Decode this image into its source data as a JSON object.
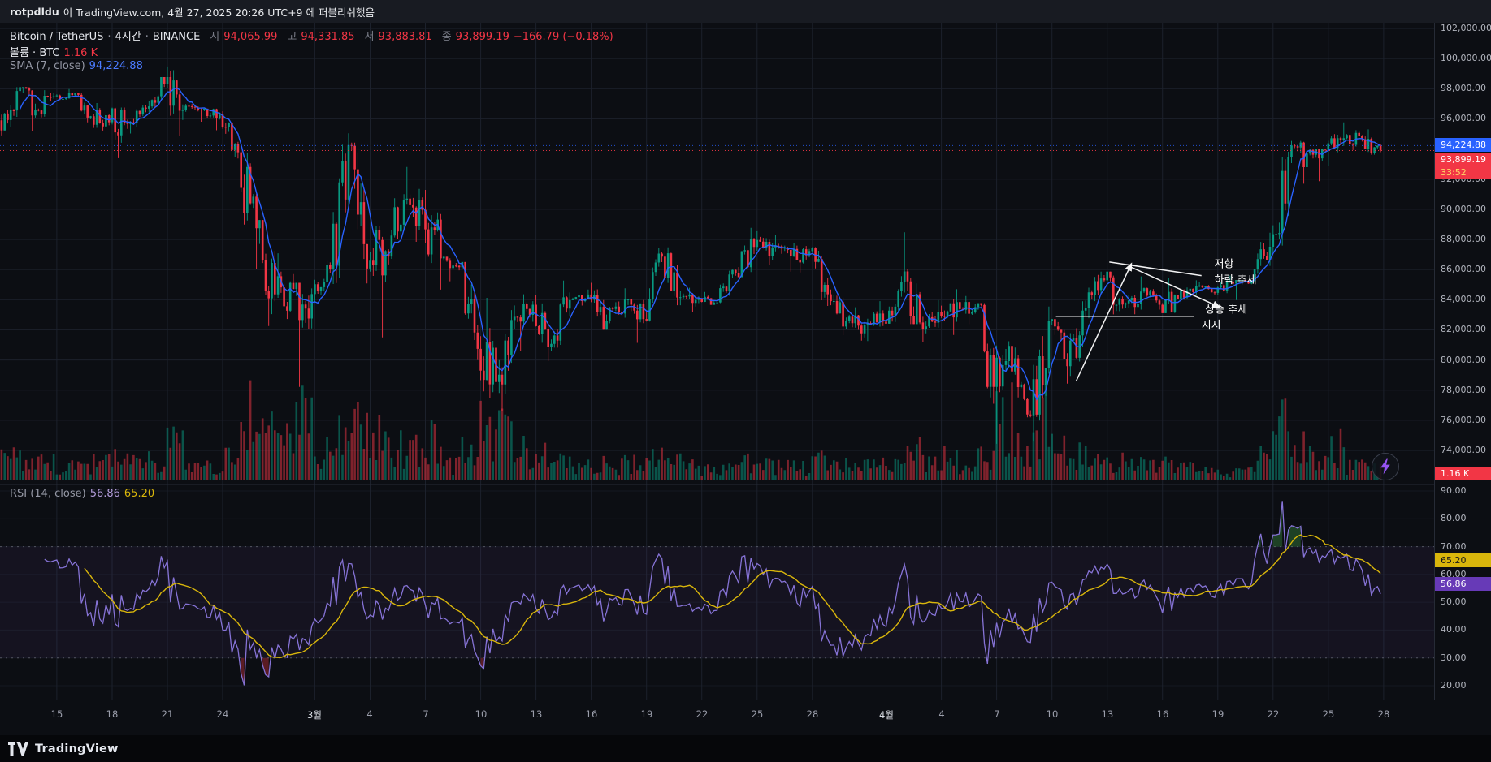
{
  "publish_bar": {
    "user": "rotpdldu",
    "rest": "이 TradingView.com, 4월 27, 2025 20:26 UTC+9 에 퍼블리쉬했음"
  },
  "legend": {
    "symbol": "Bitcoin / TetherUS",
    "dot": "·",
    "interval": "4시간",
    "exchange": "BINANCE",
    "ohlc": {
      "open_label": "시",
      "open": "94,065.99",
      "high_label": "고",
      "high": "94,331.85",
      "low_label": "저",
      "low": "93,883.81",
      "close_label": "종",
      "close": "93,899.19",
      "change": "−166.79 (−0.18%)"
    },
    "volume": {
      "label": "볼륨 · BTC",
      "value": "1.16 K"
    },
    "sma": {
      "label": "SMA (7, close)",
      "value": "94,224.88"
    }
  },
  "rsi_legend": {
    "label": "RSI (14, close)",
    "rsi_value": "56.86",
    "ma_value": "65.20"
  },
  "price_axis": {
    "ticks": [
      {
        "label": "102,000.00",
        "value": 102000
      },
      {
        "label": "100,000.00",
        "value": 100000
      },
      {
        "label": "98,000.00",
        "value": 98000
      },
      {
        "label": "96,000.00",
        "value": 96000
      },
      {
        "label": "92,000.00",
        "value": 92000
      },
      {
        "label": "90,000.00",
        "value": 90000
      },
      {
        "label": "88,000.00",
        "value": 88000
      },
      {
        "label": "86,000.00",
        "value": 86000
      },
      {
        "label": "84,000.00",
        "value": 84000
      },
      {
        "label": "82,000.00",
        "value": 82000
      },
      {
        "label": "80,000.00",
        "value": 80000
      },
      {
        "label": "78,000.00",
        "value": 78000
      },
      {
        "label": "76,000.00",
        "value": 76000
      },
      {
        "label": "74,000.00",
        "value": 74000
      }
    ],
    "sma_tag": "94,224.88",
    "close_tag": "93,899.19",
    "countdown": "33:52",
    "volume_tag": "1.16 K"
  },
  "rsi_axis": {
    "ticks": [
      {
        "label": "90.00",
        "value": 90
      },
      {
        "label": "80.00",
        "value": 80
      },
      {
        "label": "70.00",
        "value": 70
      },
      {
        "label": "60.00",
        "value": 60
      },
      {
        "label": "50.00",
        "value": 50
      },
      {
        "label": "40.00",
        "value": 40
      },
      {
        "label": "30.00",
        "value": 30
      },
      {
        "label": "20.00",
        "value": 20
      }
    ],
    "ma_tag": "65.20",
    "rsi_tag": "56.86"
  },
  "time_axis": {
    "ticks": [
      {
        "label": "15",
        "day": 3
      },
      {
        "label": "18",
        "day": 6
      },
      {
        "label": "21",
        "day": 9
      },
      {
        "label": "24",
        "day": 12
      },
      {
        "label": "3월",
        "day": 17,
        "major": true
      },
      {
        "label": "4",
        "day": 20
      },
      {
        "label": "7",
        "day": 23
      },
      {
        "label": "10",
        "day": 26
      },
      {
        "label": "13",
        "day": 29
      },
      {
        "label": "16",
        "day": 32
      },
      {
        "label": "19",
        "day": 35
      },
      {
        "label": "22",
        "day": 38
      },
      {
        "label": "25",
        "day": 41
      },
      {
        "label": "28",
        "day": 44
      },
      {
        "label": "4월",
        "day": 48,
        "major": true
      },
      {
        "label": "4",
        "day": 51
      },
      {
        "label": "7",
        "day": 54
      },
      {
        "label": "10",
        "day": 57
      },
      {
        "label": "13",
        "day": 60
      },
      {
        "label": "16",
        "day": 63
      },
      {
        "label": "19",
        "day": 66
      },
      {
        "label": "22",
        "day": 69
      },
      {
        "label": "25",
        "day": 72
      },
      {
        "label": "28",
        "day": 75
      }
    ]
  },
  "annotations": {
    "lines": [
      {
        "name": "resistance-line",
        "d1": 60.2,
        "p1": 86500,
        "d2": 65.2,
        "p2": 85600,
        "arrow": false
      },
      {
        "name": "downtrend-line",
        "d1": 61.3,
        "p1": 86200,
        "d2": 66.2,
        "p2": 83500,
        "arrow": true
      },
      {
        "name": "uptrend-line",
        "d1": 58.4,
        "p1": 78600,
        "d2": 61.4,
        "p2": 86400,
        "arrow": true
      },
      {
        "name": "support-line",
        "d1": 57.3,
        "p1": 82900,
        "d2": 64.8,
        "p2": 82900,
        "arrow": false
      }
    ],
    "labels": [
      {
        "text": "저항",
        "day": 65.9,
        "price": 86350
      },
      {
        "text": "하락 추세",
        "day": 65.9,
        "price": 85300
      },
      {
        "text": "상승 추세",
        "day": 65.4,
        "price": 83350
      },
      {
        "text": "지지",
        "day": 65.2,
        "price": 82300
      }
    ]
  },
  "footer": {
    "brand": "TradingView"
  },
  "colors": {
    "bg": "#0c0e13",
    "grid": "#1c212c",
    "up": "#089981",
    "down": "#f23645",
    "vol_up": "rgba(8,153,129,0.5)",
    "vol_dn": "rgba(242,54,69,0.5)",
    "sma": "#2962ff",
    "rsi": "#8673d6",
    "rsi_ma": "#d9b60b",
    "rsi_band": "rgba(126,87,194,0.08)",
    "band_line": "rgba(178,181,190,0.4)",
    "rsi_over": "rgba(67,160,71,0.35)",
    "rsi_under": "rgba(242,54,69,0.35)",
    "annotation": "#ffffff",
    "separator": "#262b36"
  },
  "chart_data": {
    "type": "candlestick",
    "symbol": "Bitcoin / TetherUS",
    "exchange": "BINANCE",
    "interval": "4시간",
    "start_date": "2025-02-12",
    "price_range": [
      74000,
      102000
    ],
    "rsi_range": [
      20,
      90
    ],
    "last_close": 93899.19,
    "last_sma": 94224.88,
    "current": {
      "open": 94065.99,
      "high": 94331.85,
      "low": 93883.81,
      "close": 93899.19,
      "change": -166.79,
      "change_pct": -0.18,
      "volume_k": 1.16
    },
    "indicators": [
      {
        "name": "SMA",
        "period": 7,
        "source": "close",
        "value": 94224.88,
        "color": "#2962ff"
      },
      {
        "name": "RSI",
        "period": 14,
        "source": "close",
        "value": 56.86,
        "color": "#8673d6"
      },
      {
        "name": "RSI-based MA",
        "period": 14,
        "value": 65.2,
        "color": "#d9b60b"
      }
    ],
    "daily_ohlcv_columns": [
      "open",
      "high",
      "low",
      "close",
      "volume_rel"
    ],
    "daily_ohlcv": [
      [
        95900,
        98100,
        94900,
        97850,
        30
      ],
      [
        97850,
        98100,
        95200,
        96600,
        28
      ],
      [
        96600,
        97900,
        96100,
        97500,
        24
      ],
      [
        97500,
        97972,
        97240,
        97570,
        18
      ],
      [
        97570,
        97704,
        95772,
        96175,
        20
      ],
      [
        96175,
        97046,
        95220,
        95773,
        26
      ],
      [
        95773,
        96748,
        93388,
        95655,
        32
      ],
      [
        95655,
        96899,
        95029,
        96675,
        22
      ],
      [
        96675,
        98768,
        96425,
        98333,
        26
      ],
      [
        98333,
        99475,
        94871,
        96585,
        48
      ],
      [
        96585,
        96988,
        95807,
        96577,
        22
      ],
      [
        96577,
        96677,
        95243,
        96274,
        18
      ],
      [
        96274,
        96500,
        93371,
        93784,
        34
      ],
      [
        93784,
        94000,
        86050,
        88736,
        90
      ],
      [
        88736,
        89286,
        82256,
        84347,
        80
      ],
      [
        84347,
        87078,
        82716,
        84709,
        60
      ],
      [
        84709,
        85120,
        78215,
        84373,
        95
      ],
      [
        84373,
        86558,
        83794,
        86031,
        40
      ],
      [
        86031,
        95043,
        85040,
        94261,
        75
      ],
      [
        94261,
        94416,
        85081,
        86065,
        70
      ],
      [
        86065,
        88911,
        81500,
        87222,
        65
      ],
      [
        87222,
        91000,
        86334,
        90606,
        45
      ],
      [
        90606,
        92810,
        87836,
        89961,
        40
      ],
      [
        89961,
        91283,
        84667,
        86742,
        55
      ],
      [
        86742,
        86847,
        85219,
        86154,
        22
      ],
      [
        86154,
        86500,
        80000,
        80734,
        40
      ],
      [
        80734,
        84123,
        77459,
        78532,
        70
      ],
      [
        78532,
        83617,
        76606,
        82862,
        65
      ],
      [
        82862,
        84358,
        80607,
        83665,
        40
      ],
      [
        83665,
        84336,
        79939,
        81066,
        35
      ],
      [
        81066,
        85270,
        80818,
        83969,
        32
      ],
      [
        83969,
        84672,
        83613,
        84343,
        18
      ],
      [
        84343,
        85117,
        82000,
        82579,
        22
      ],
      [
        82579,
        84756,
        82432,
        84010,
        22
      ],
      [
        84010,
        84021,
        81134,
        82718,
        24
      ],
      [
        82718,
        87453,
        82553,
        86854,
        30
      ],
      [
        86854,
        87470,
        83633,
        84167,
        26
      ],
      [
        84167,
        84791,
        83178,
        84043,
        20
      ],
      [
        84043,
        84511,
        83658,
        83820,
        14
      ],
      [
        83820,
        85999,
        83774,
        85787,
        16
      ],
      [
        85787,
        88765,
        85495,
        87498,
        26
      ],
      [
        87498,
        88544,
        86322,
        87471,
        22
      ],
      [
        87471,
        88288,
        85861,
        86900,
        22
      ],
      [
        86900,
        87786,
        85811,
        87227,
        18
      ],
      [
        87227,
        87489,
        83585,
        84359,
        26
      ],
      [
        84359,
        84679,
        81644,
        82597,
        22
      ],
      [
        82597,
        83500,
        81279,
        82334,
        18
      ],
      [
        82334,
        83905,
        81256,
        82548,
        22
      ],
      [
        82548,
        85559,
        82408,
        85169,
        26
      ],
      [
        85169,
        88466,
        82376,
        82485,
        40
      ],
      [
        82485,
        83968,
        81167,
        83205,
        30
      ],
      [
        83205,
        84696,
        81659,
        83843,
        30
      ],
      [
        83843,
        84247,
        82377,
        83504,
        14
      ],
      [
        83504,
        83767,
        77097,
        78214,
        35
      ],
      [
        78214,
        81243,
        74436,
        79235,
        90
      ],
      [
        79235,
        80823,
        76198,
        76272,
        50
      ],
      [
        76272,
        83541,
        74589,
        82573,
        85
      ],
      [
        82573,
        82709,
        78426,
        79591,
        45
      ],
      [
        79591,
        83939,
        78936,
        83423,
        35
      ],
      [
        83423,
        85856,
        82769,
        85287,
        28
      ],
      [
        85287,
        85857,
        83027,
        83684,
        24
      ],
      [
        83684,
        85545,
        83034,
        84542,
        22
      ],
      [
        84542,
        84802,
        83343,
        83668,
        18
      ],
      [
        83668,
        85428,
        83105,
        84033,
        22
      ],
      [
        84033,
        85287,
        83751,
        84895,
        16
      ],
      [
        84895,
        85161,
        84297,
        84450,
        12
      ],
      [
        84450,
        85598,
        84311,
        85063,
        12
      ],
      [
        85063,
        85306,
        83977,
        85224,
        12
      ],
      [
        85224,
        88447,
        85143,
        87518,
        30
      ],
      [
        87518,
        93817,
        87075,
        93441,
        75
      ],
      [
        93441,
        94535,
        91696,
        93699,
        45
      ],
      [
        93699,
        94016,
        91868,
        93943,
        30
      ],
      [
        93943,
        95768,
        92898,
        94720,
        45
      ],
      [
        94720,
        95250,
        93927,
        94646,
        20
      ],
      [
        94646,
        95301,
        93624,
        93899,
        18
      ]
    ]
  }
}
